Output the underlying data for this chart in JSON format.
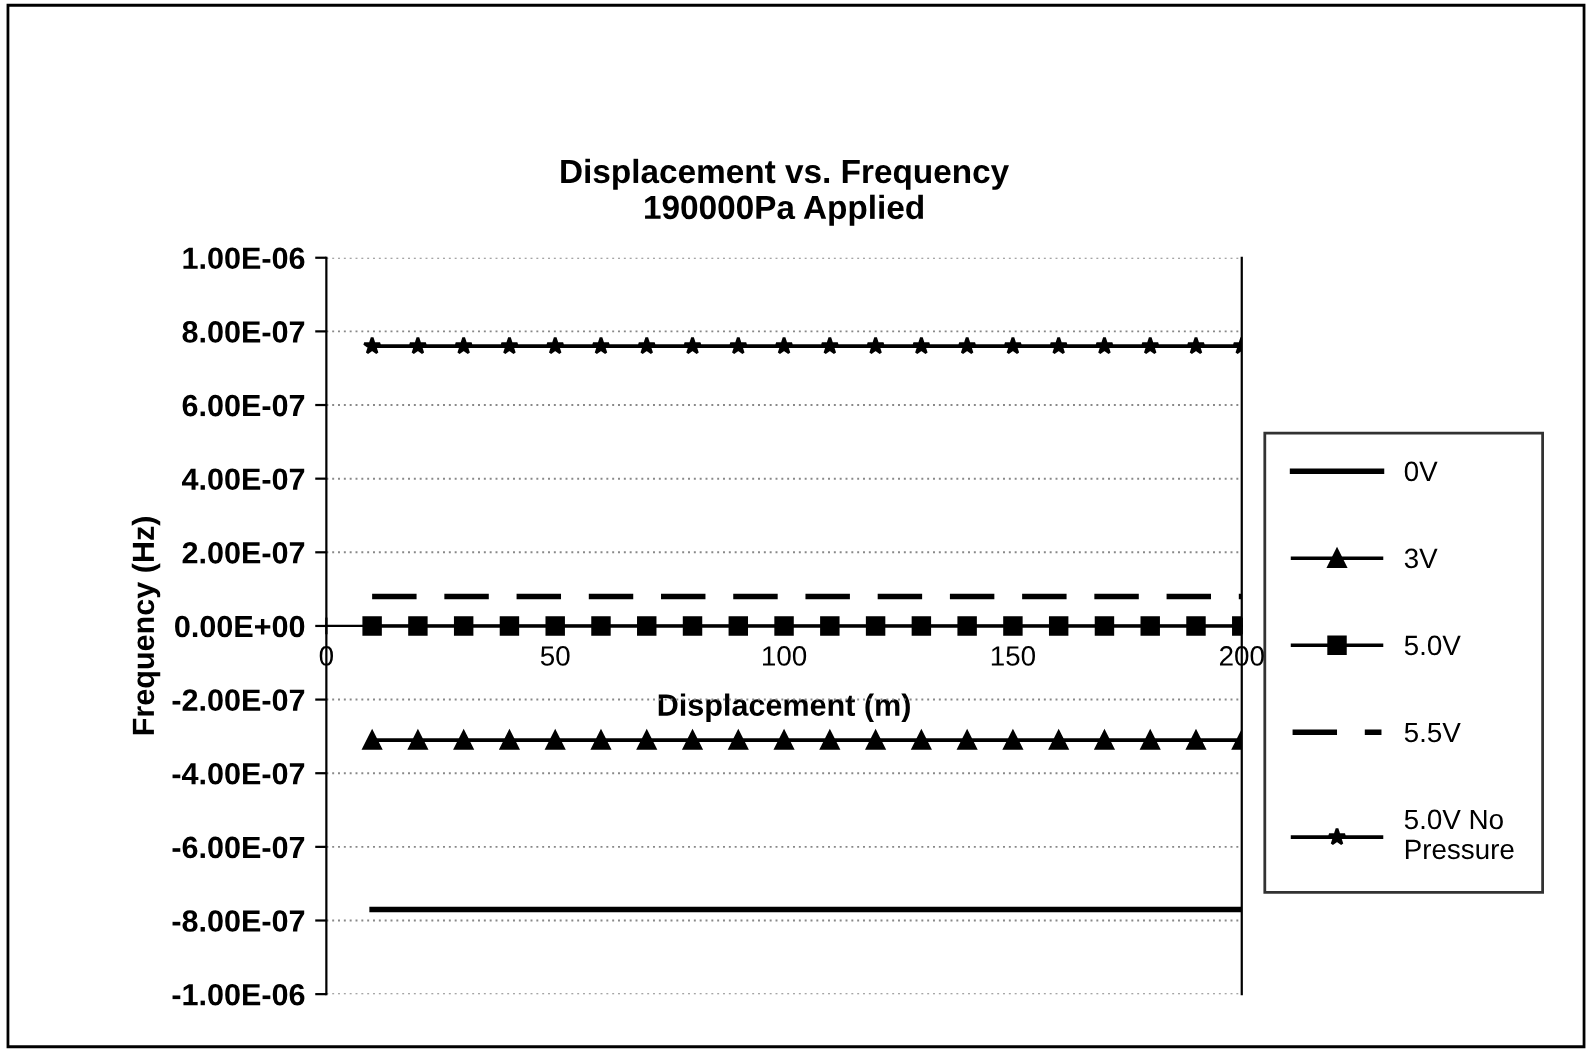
{
  "chart_data": {
    "type": "line",
    "title": "Displacement vs. Frequency\n190000Pa Applied",
    "xlabel": "Displacement (m)",
    "ylabel": "Frequency (Hz)",
    "x": [
      10,
      20,
      30,
      40,
      50,
      60,
      70,
      80,
      90,
      100,
      110,
      120,
      130,
      140,
      150,
      160,
      170,
      180,
      190,
      200
    ],
    "series": [
      {
        "name": "0V",
        "color": "#000000",
        "marker": "none",
        "line_style": "solid",
        "values": [
          -7.7e-07,
          -7.7e-07,
          -7.7e-07,
          -7.7e-07,
          -7.7e-07,
          -7.7e-07,
          -7.7e-07,
          -7.7e-07,
          -7.7e-07,
          -7.7e-07,
          -7.7e-07,
          -7.7e-07,
          -7.7e-07,
          -7.7e-07,
          -7.7e-07,
          -7.7e-07,
          -7.7e-07,
          -7.7e-07,
          -7.7e-07,
          -7.7e-07
        ]
      },
      {
        "name": "3V",
        "color": "#000000",
        "marker": "triangle",
        "line_style": "solid",
        "values": [
          -3.1e-07,
          -3.1e-07,
          -3.1e-07,
          -3.1e-07,
          -3.1e-07,
          -3.1e-07,
          -3.1e-07,
          -3.1e-07,
          -3.1e-07,
          -3.1e-07,
          -3.1e-07,
          -3.1e-07,
          -3.1e-07,
          -3.1e-07,
          -3.1e-07,
          -3.1e-07,
          -3.1e-07,
          -3.1e-07,
          -3.1e-07,
          -3.1e-07
        ]
      },
      {
        "name": "5.0V",
        "color": "#000000",
        "marker": "square",
        "line_style": "solid",
        "values": [
          0,
          0,
          0,
          0,
          0,
          0,
          0,
          0,
          0,
          0,
          0,
          0,
          0,
          0,
          0,
          0,
          0,
          0,
          0,
          0
        ]
      },
      {
        "name": "5.5V",
        "color": "#000000",
        "marker": "none",
        "line_style": "dashed",
        "values": [
          8e-08,
          8e-08,
          8e-08,
          8e-08,
          8e-08,
          8e-08,
          8e-08,
          8e-08,
          8e-08,
          8e-08,
          8e-08,
          8e-08,
          8e-08,
          8e-08,
          8e-08,
          8e-08,
          8e-08,
          8e-08,
          8e-08,
          8e-08
        ]
      },
      {
        "name": "5.0V No\nPressure",
        "color": "#000000",
        "marker": "star",
        "line_style": "solid",
        "values": [
          7.6e-07,
          7.6e-07,
          7.6e-07,
          7.6e-07,
          7.6e-07,
          7.6e-07,
          7.6e-07,
          7.6e-07,
          7.6e-07,
          7.6e-07,
          7.6e-07,
          7.6e-07,
          7.6e-07,
          7.6e-07,
          7.6e-07,
          7.6e-07,
          7.6e-07,
          7.6e-07,
          7.6e-07,
          7.6e-07
        ]
      }
    ],
    "xlim": [
      0,
      200
    ],
    "xticks": [
      0,
      50,
      100,
      150,
      200
    ],
    "ylim": [
      -1e-06,
      1e-06
    ],
    "yticks": [
      {
        "value": 1e-06,
        "label": "1.00E-06"
      },
      {
        "value": 8e-07,
        "label": "8.00E-07"
      },
      {
        "value": 6e-07,
        "label": "6.00E-07"
      },
      {
        "value": 4e-07,
        "label": "4.00E-07"
      },
      {
        "value": 2e-07,
        "label": "2.00E-07"
      },
      {
        "value": 0,
        "label": "0.00E+00"
      },
      {
        "value": -2e-07,
        "label": "-2.00E-07"
      },
      {
        "value": -4e-07,
        "label": "-4.00E-07"
      },
      {
        "value": -6e-07,
        "label": "-6.00E-07"
      },
      {
        "value": -8e-07,
        "label": "-8.00E-07"
      },
      {
        "value": -1e-06,
        "label": "-1.00E-06"
      }
    ],
    "grid": "y",
    "legend": "right"
  }
}
